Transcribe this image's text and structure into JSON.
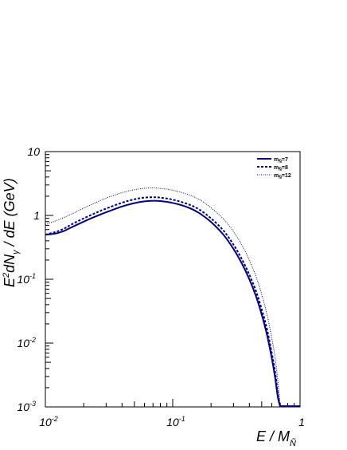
{
  "chart_data": {
    "type": "line",
    "title": "",
    "xlabel": {
      "main": "E / M",
      "sub": "Ñ"
    },
    "ylabel": {
      "main": "E",
      "sup": "2",
      "mid": "dN",
      "sub": "γ",
      "tail": " / dE (GeV)"
    },
    "x_scale": "log",
    "y_scale": "log",
    "xlim": [
      0.01,
      1
    ],
    "ylim": [
      0.001,
      10
    ],
    "grid": false,
    "legend_position": "top-right",
    "x_ticks": [
      {
        "value": 0.01,
        "base": "10",
        "exp": "-2"
      },
      {
        "value": 0.1,
        "base": "10",
        "exp": "-1"
      },
      {
        "value": 1,
        "base": "1",
        "exp": ""
      }
    ],
    "y_ticks": [
      {
        "value": 0.001,
        "base": "10",
        "exp": "-3"
      },
      {
        "value": 0.01,
        "base": "10",
        "exp": "-2"
      },
      {
        "value": 0.1,
        "base": "10",
        "exp": "-1"
      },
      {
        "value": 1,
        "base": "1",
        "exp": ""
      },
      {
        "value": 10,
        "base": "10",
        "exp": ""
      }
    ],
    "series": [
      {
        "name": {
          "prefix": "m",
          "sub": "Ñ",
          "suffix": "=7"
        },
        "style": "solid",
        "color": "#000080",
        "x": [
          0.01,
          0.012,
          0.014,
          0.016,
          0.02,
          0.025,
          0.03,
          0.04,
          0.05,
          0.06,
          0.07,
          0.08,
          0.1,
          0.13,
          0.16,
          0.2,
          0.25,
          0.3,
          0.35,
          0.4,
          0.45,
          0.5,
          0.55,
          0.6,
          0.64,
          0.67,
          0.7
        ],
        "y": [
          0.5,
          0.52,
          0.57,
          0.65,
          0.8,
          0.97,
          1.12,
          1.38,
          1.56,
          1.66,
          1.7,
          1.68,
          1.57,
          1.35,
          1.1,
          0.79,
          0.5,
          0.3,
          0.175,
          0.1,
          0.055,
          0.028,
          0.0135,
          0.0058,
          0.0027,
          0.0014,
          0.001
        ]
      },
      {
        "name": {
          "prefix": "m",
          "sub": "Ñ",
          "suffix": "=8"
        },
        "style": "dashed",
        "color": "#000080",
        "x": [
          0.01,
          0.012,
          0.014,
          0.016,
          0.02,
          0.025,
          0.03,
          0.04,
          0.05,
          0.06,
          0.07,
          0.08,
          0.1,
          0.13,
          0.16,
          0.2,
          0.25,
          0.3,
          0.35,
          0.4,
          0.45,
          0.5,
          0.55,
          0.6,
          0.64,
          0.67,
          0.7
        ],
        "y": [
          0.5,
          0.55,
          0.62,
          0.72,
          0.9,
          1.1,
          1.28,
          1.58,
          1.79,
          1.9,
          1.93,
          1.9,
          1.77,
          1.52,
          1.25,
          0.9,
          0.58,
          0.35,
          0.205,
          0.118,
          0.066,
          0.034,
          0.0165,
          0.007,
          0.0033,
          0.0016,
          0.001
        ]
      },
      {
        "name": {
          "prefix": "m",
          "sub": "Ñ",
          "suffix": "=12"
        },
        "style": "dotted",
        "color": "#000080",
        "x": [
          0.01,
          0.012,
          0.014,
          0.016,
          0.02,
          0.025,
          0.03,
          0.04,
          0.05,
          0.06,
          0.07,
          0.08,
          0.1,
          0.13,
          0.16,
          0.2,
          0.25,
          0.3,
          0.35,
          0.4,
          0.45,
          0.5,
          0.55,
          0.6,
          0.64,
          0.67,
          0.7
        ],
        "y": [
          0.72,
          0.82,
          0.93,
          1.05,
          1.3,
          1.6,
          1.87,
          2.27,
          2.53,
          2.66,
          2.7,
          2.65,
          2.48,
          2.15,
          1.8,
          1.32,
          0.88,
          0.56,
          0.34,
          0.2,
          0.112,
          0.058,
          0.028,
          0.012,
          0.0055,
          0.0025,
          0.001
        ]
      }
    ]
  }
}
